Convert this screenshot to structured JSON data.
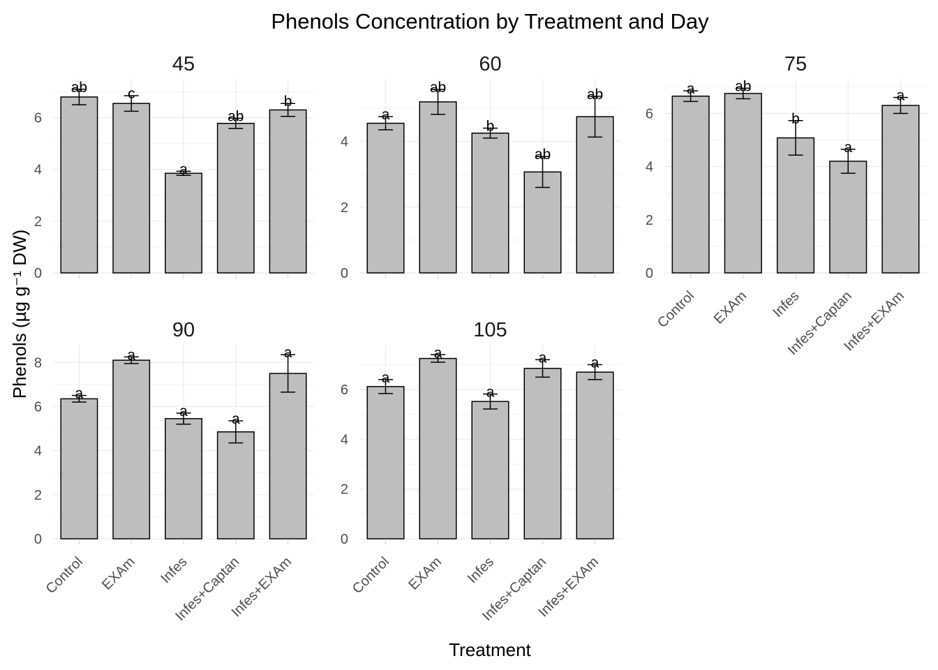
{
  "chart_data": {
    "type": "bar",
    "title": "Phenols Concentration by Treatment and Day",
    "xlabel": "Treatment",
    "ylabel": "Phenols (µg g⁻¹ DW)",
    "categories": [
      "Control",
      "EXAm",
      "Infes",
      "Infes+Captan",
      "Infes+EXAm"
    ],
    "bar_color": "#bebebe",
    "bar_stroke": "#000000",
    "grid": true,
    "facets": [
      {
        "title": "45",
        "ylim": [
          0,
          7.5
        ],
        "yticks": [
          0,
          2,
          4,
          6
        ],
        "values": [
          6.8,
          6.55,
          3.85,
          5.78,
          6.3
        ],
        "error": [
          0.3,
          0.3,
          0.08,
          0.2,
          0.25
        ],
        "labels": [
          "ab",
          "c",
          "a",
          "ab",
          "b"
        ]
      },
      {
        "title": "60",
        "ylim": [
          0,
          5.9
        ],
        "yticks": [
          0,
          2,
          4
        ],
        "values": [
          4.55,
          5.2,
          4.25,
          3.07,
          4.75
        ],
        "error": [
          0.2,
          0.38,
          0.15,
          0.47,
          0.62
        ],
        "labels": [
          "a",
          "ab",
          "b",
          "ab",
          "ab"
        ]
      },
      {
        "title": "75",
        "ylim": [
          0,
          7.3
        ],
        "yticks": [
          0,
          2,
          4,
          6
        ],
        "values": [
          6.65,
          6.75,
          5.08,
          4.2,
          6.3
        ],
        "error": [
          0.2,
          0.2,
          0.65,
          0.45,
          0.3
        ],
        "labels": [
          "a",
          "ab",
          "b",
          "a",
          "a"
        ]
      },
      {
        "title": "90",
        "ylim": [
          0,
          8.8
        ],
        "yticks": [
          0,
          2,
          4,
          6,
          8
        ],
        "values": [
          6.35,
          8.1,
          5.45,
          4.85,
          7.5
        ],
        "error": [
          0.15,
          0.15,
          0.25,
          0.5,
          0.85
        ],
        "labels": [
          "a",
          "a",
          "a",
          "a",
          "a"
        ]
      },
      {
        "title": "105",
        "ylim": [
          0,
          7.8
        ],
        "yticks": [
          0,
          2,
          4,
          6
        ],
        "values": [
          6.12,
          7.25,
          5.52,
          6.85,
          6.7
        ],
        "error": [
          0.28,
          0.15,
          0.3,
          0.35,
          0.3
        ],
        "labels": [
          "a",
          "a",
          "a",
          "a",
          "a"
        ]
      }
    ]
  }
}
